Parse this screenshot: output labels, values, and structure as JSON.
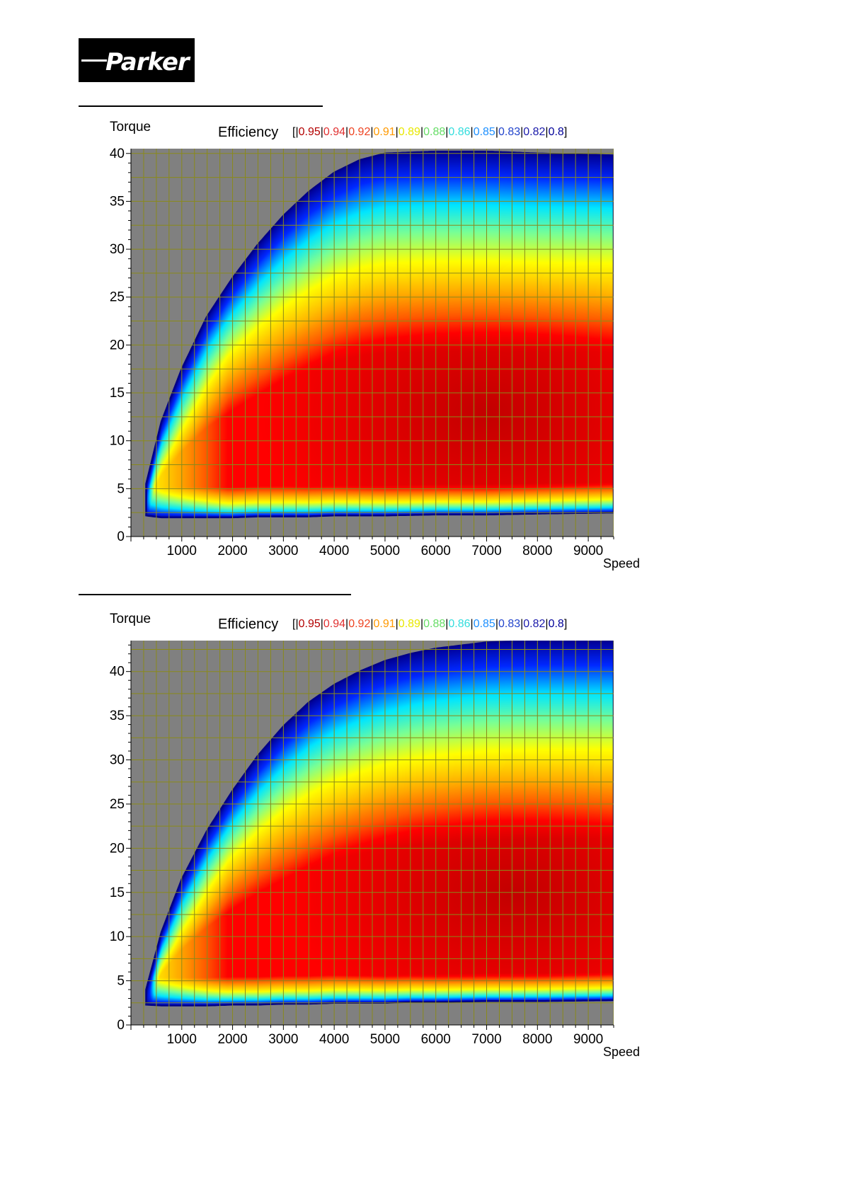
{
  "brand": {
    "logo_text": "Parker"
  },
  "legend_colors": [
    "#b30000",
    "#e03030",
    "#ee4422",
    "#ff9900",
    "#e8e800",
    "#66dd66",
    "#33dddd",
    "#1e90ff",
    "#2244cc",
    "#1a1aaa",
    "#000099"
  ],
  "chart_data": [
    {
      "type": "heatmap",
      "title": "",
      "xlabel": "Speed",
      "ylabel": "Torque",
      "legend_title": "Efficiency",
      "legend_open": "[",
      "legend_close": "]",
      "legend_levels": [
        "0.95",
        "0.94",
        "0.92",
        "0.91",
        "0.89",
        "0.88",
        "0.86",
        "0.85",
        "0.83",
        "0.82",
        "0.8"
      ],
      "xlim": [
        0,
        9500
      ],
      "ylim": [
        0,
        40.5
      ],
      "x_ticks": [
        1000,
        2000,
        3000,
        4000,
        5000,
        6000,
        7000,
        8000,
        9000
      ],
      "y_ticks": [
        0,
        5,
        10,
        15,
        20,
        25,
        30,
        35,
        40
      ],
      "grid": true,
      "envelope": {
        "speed": [
          300,
          600,
          1000,
          1500,
          2000,
          2500,
          3000,
          3500,
          4000,
          4500,
          5000,
          6000,
          7000,
          8000,
          9500
        ],
        "max_torque": [
          5.5,
          12,
          17.5,
          23,
          27,
          30.5,
          33.5,
          36,
          38,
          39.3,
          40,
          40.2,
          40.2,
          40,
          39.8
        ],
        "min_torque": [
          2.2,
          2.0,
          2.0,
          2.0,
          2.0,
          2.1,
          2.1,
          2.1,
          2.2,
          2.2,
          2.2,
          2.3,
          2.3,
          2.4,
          2.5
        ]
      },
      "peak_efficiency": {
        "speed": 7000,
        "torque": 13,
        "value": 0.95
      }
    },
    {
      "type": "heatmap",
      "title": "",
      "xlabel": "Speed",
      "ylabel": "Torque",
      "legend_title": "Efficiency",
      "legend_open": "[",
      "legend_close": "]",
      "legend_levels": [
        "0.95",
        "0.94",
        "0.92",
        "0.91",
        "0.89",
        "0.88",
        "0.86",
        "0.85",
        "0.83",
        "0.82",
        "0.8"
      ],
      "xlim": [
        0,
        9500
      ],
      "ylim": [
        0,
        43.5
      ],
      "x_ticks": [
        1000,
        2000,
        3000,
        4000,
        5000,
        6000,
        7000,
        8000,
        9000
      ],
      "y_ticks": [
        0,
        5,
        10,
        15,
        20,
        25,
        30,
        35,
        40
      ],
      "grid": true,
      "envelope": {
        "speed": [
          300,
          600,
          1000,
          1500,
          2000,
          2500,
          3000,
          3500,
          4000,
          4500,
          5000,
          5500,
          6000,
          7000,
          8000,
          9500
        ],
        "max_torque": [
          4,
          10.5,
          16.5,
          22,
          26.5,
          30.5,
          33.8,
          36.5,
          38.5,
          40,
          41.2,
          42,
          42.6,
          43.3,
          43.5,
          43.5
        ],
        "min_torque": [
          2.3,
          2.2,
          2.2,
          2.2,
          2.3,
          2.3,
          2.4,
          2.4,
          2.5,
          2.5,
          2.5,
          2.6,
          2.6,
          2.7,
          2.7,
          2.8
        ]
      },
      "peak_efficiency": {
        "speed": 7500,
        "torque": 15,
        "value": 0.95
      }
    }
  ]
}
